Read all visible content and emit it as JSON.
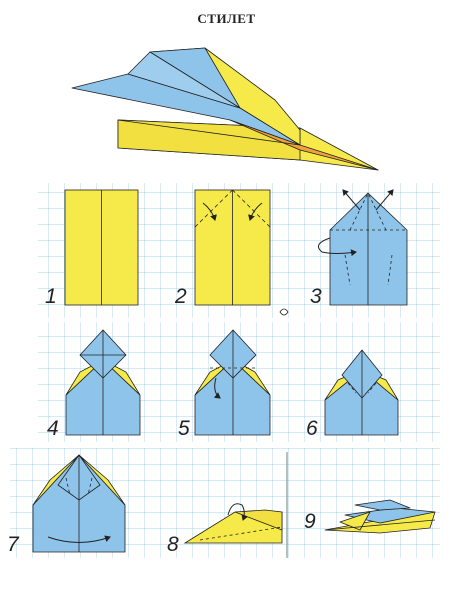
{
  "title": "СТИЛЕТ",
  "steps": [
    "1",
    "2",
    "3",
    "4",
    "5",
    "6",
    "7",
    "8",
    "9"
  ],
  "colors": {
    "yellow": "#f6ea4a",
    "blue": "#8fc4ea",
    "orange": "#f0a23a",
    "grid": "#8ec6e8",
    "line": "#222222"
  }
}
